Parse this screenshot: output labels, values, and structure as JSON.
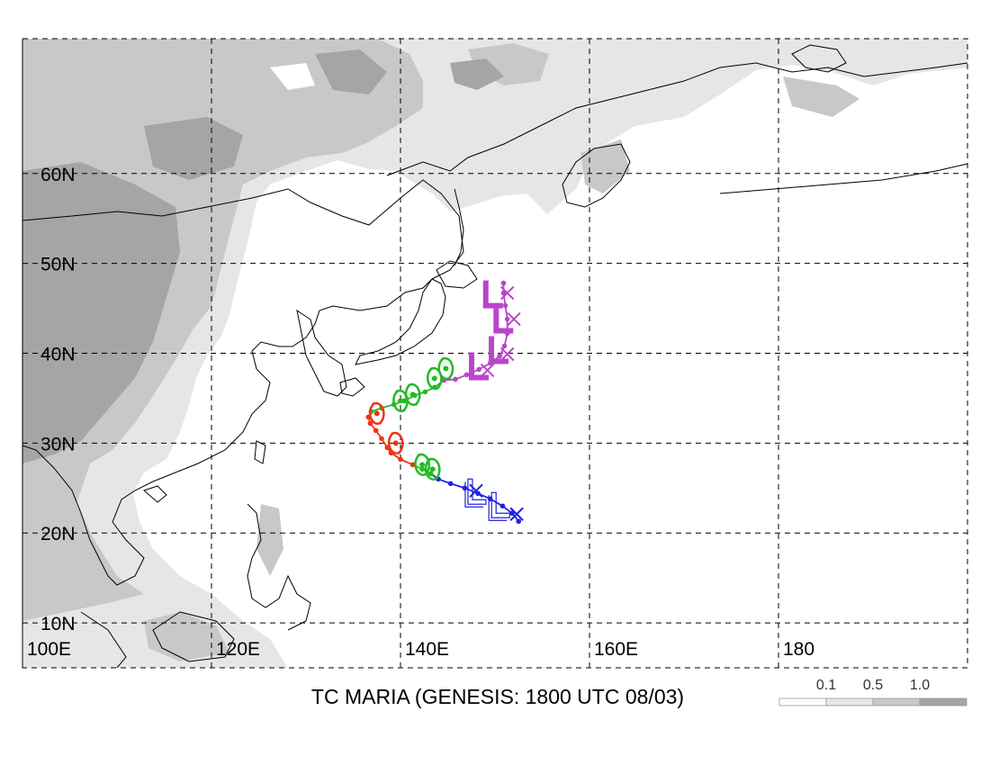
{
  "title": "TC MARIA (GENESIS: 1800 UTC 08/03)",
  "map": {
    "lon_range": [
      100,
      200
    ],
    "lat_range": [
      5,
      75
    ],
    "lon_gridlines": [
      100,
      120,
      140,
      160,
      180
    ],
    "lat_gridlines": [
      10,
      20,
      30,
      40,
      50,
      60
    ],
    "lon_labels": [
      {
        "lon": 100,
        "text": "100E"
      },
      {
        "lon": 120,
        "text": "120E"
      },
      {
        "lon": 140,
        "text": "140E"
      },
      {
        "lon": 160,
        "text": "160E"
      },
      {
        "lon": 180,
        "text": "180"
      }
    ],
    "lat_labels": [
      {
        "lat": 60,
        "text": "60N"
      },
      {
        "lat": 50,
        "text": "50N"
      },
      {
        "lat": 40,
        "text": "40N"
      },
      {
        "lat": 30,
        "text": "30N"
      },
      {
        "lat": 20,
        "text": "20N"
      },
      {
        "lat": 10,
        "text": "10N"
      }
    ]
  },
  "legend": {
    "labels": [
      "0.1",
      "0.5",
      "1.0"
    ],
    "colors": [
      "#ffffff",
      "#e6e6e6",
      "#c8c8c8",
      "#a5a5a5"
    ]
  },
  "colors": {
    "blue_segment": "#2222dd",
    "green_segment": "#22bb22",
    "red_segment": "#ee3311",
    "magenta_segment": "#bb44cc"
  },
  "track": {
    "segments": [
      {
        "color_key": "blue_segment",
        "points": [
          [
            152.5,
            21.3
          ],
          [
            151.8,
            22.2
          ],
          [
            150.8,
            23.0
          ],
          [
            149.5,
            23.8
          ],
          [
            148.2,
            24.4
          ],
          [
            146.8,
            25.0
          ],
          [
            145.3,
            25.5
          ],
          [
            144.0,
            26.0
          ],
          [
            143.2,
            26.6
          ]
        ]
      },
      {
        "color_key": "green_segment",
        "points": [
          [
            143.2,
            26.6
          ],
          [
            142.3,
            27.1
          ],
          [
            141.3,
            27.6
          ]
        ]
      },
      {
        "color_key": "red_segment",
        "points": [
          [
            141.3,
            27.6
          ],
          [
            140.0,
            28.2
          ],
          [
            139.0,
            28.9
          ],
          [
            138.6,
            29.5
          ],
          [
            138.0,
            30.5
          ],
          [
            137.4,
            31.4
          ],
          [
            136.8,
            32.2
          ],
          [
            136.6,
            32.9
          ],
          [
            136.9,
            33.5
          ]
        ]
      },
      {
        "color_key": "green_segment",
        "points": [
          [
            136.9,
            33.5
          ],
          [
            138.0,
            33.9
          ],
          [
            139.3,
            34.3
          ],
          [
            140.4,
            34.7
          ],
          [
            141.5,
            35.3
          ],
          [
            142.6,
            35.7
          ],
          [
            143.6,
            36.2
          ],
          [
            144.6,
            37.0
          ]
        ]
      },
      {
        "color_key": "magenta_segment",
        "points": [
          [
            144.6,
            37.0
          ],
          [
            145.8,
            37.1
          ],
          [
            147.0,
            37.6
          ],
          [
            148.3,
            38.2
          ],
          [
            149.5,
            38.9
          ],
          [
            150.5,
            39.7
          ],
          [
            151.0,
            40.8
          ],
          [
            151.3,
            42.2
          ],
          [
            151.3,
            43.8
          ],
          [
            151.1,
            45.3
          ],
          [
            150.9,
            46.7
          ],
          [
            150.9,
            47.8
          ]
        ]
      }
    ],
    "markers": [
      {
        "type": "L",
        "lon": 147.9,
        "lat": 23.8,
        "color_key": "blue_segment",
        "open": true
      },
      {
        "type": "L",
        "lon": 150.4,
        "lat": 22.3,
        "color_key": "blue_segment",
        "open": true
      },
      {
        "type": "X",
        "lon": 148.0,
        "lat": 24.7,
        "color_key": "blue_segment"
      },
      {
        "type": "X",
        "lon": 152.3,
        "lat": 22.1,
        "color_key": "blue_segment"
      },
      {
        "type": "C",
        "lon": 143.4,
        "lat": 27.1,
        "color_key": "green_segment"
      },
      {
        "type": "C",
        "lon": 142.3,
        "lat": 27.6,
        "color_key": "green_segment"
      },
      {
        "type": "C",
        "lon": 140.0,
        "lat": 34.7,
        "color_key": "green_segment"
      },
      {
        "type": "C",
        "lon": 141.3,
        "lat": 35.4,
        "color_key": "green_segment"
      },
      {
        "type": "C",
        "lon": 143.6,
        "lat": 37.2,
        "color_key": "green_segment"
      },
      {
        "type": "C",
        "lon": 144.8,
        "lat": 38.3,
        "color_key": "green_segment"
      },
      {
        "type": "C",
        "lon": 137.5,
        "lat": 33.3,
        "color_key": "red_segment"
      },
      {
        "type": "C",
        "lon": 139.5,
        "lat": 30.0,
        "color_key": "red_segment"
      },
      {
        "type": "L",
        "lon": 148.0,
        "lat": 37.7,
        "color_key": "magenta_segment"
      },
      {
        "type": "L",
        "lon": 150.1,
        "lat": 39.5,
        "color_key": "magenta_segment"
      },
      {
        "type": "L",
        "lon": 150.6,
        "lat": 42.9,
        "color_key": "magenta_segment"
      },
      {
        "type": "L",
        "lon": 149.5,
        "lat": 45.7,
        "color_key": "magenta_segment"
      },
      {
        "type": "X",
        "lon": 149.2,
        "lat": 38.1,
        "color_key": "magenta_segment"
      },
      {
        "type": "X",
        "lon": 151.3,
        "lat": 39.9,
        "color_key": "magenta_segment"
      },
      {
        "type": "X",
        "lon": 152.0,
        "lat": 43.8,
        "color_key": "magenta_segment"
      },
      {
        "type": "X",
        "lon": 151.3,
        "lat": 46.7,
        "color_key": "magenta_segment"
      }
    ]
  }
}
